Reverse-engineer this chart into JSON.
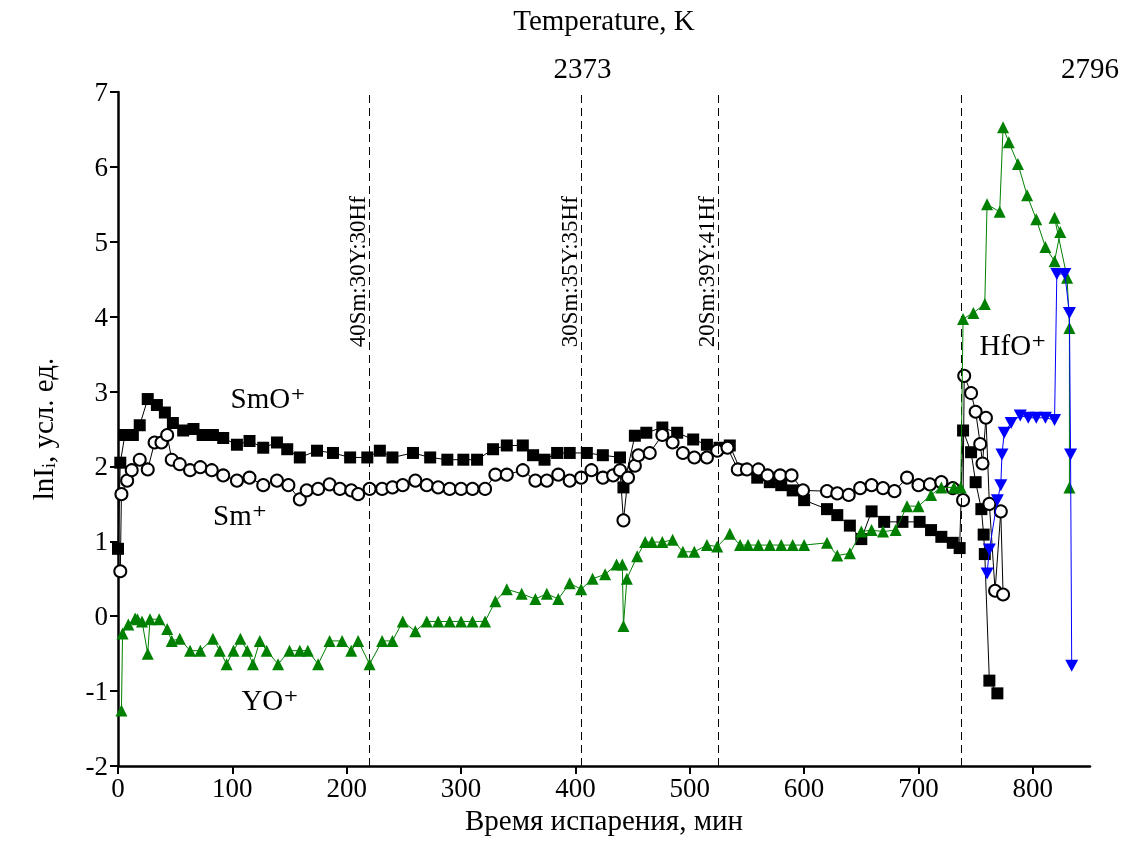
{
  "chart_data": {
    "type": "line",
    "xlabel": "Время испарения, мин",
    "ylabel": "lnI$_{i}$, усл. ед.",
    "x2label": "Temperature, K",
    "xlim": [
      0,
      850
    ],
    "xticks": [
      0,
      100,
      200,
      300,
      400,
      500,
      600,
      700,
      800
    ],
    "ylim": [
      -2,
      7
    ],
    "yticks": [
      -2,
      -1,
      0,
      1,
      2,
      3,
      4,
      5,
      6,
      7
    ],
    "x2lim": [
      1986,
      2796
    ],
    "x2ticks": [
      2373,
      2796
    ],
    "grid": false,
    "legend": false,
    "line_style": "solid",
    "series": [
      {
        "name": "SmO⁺",
        "marker": "square",
        "color": "#000000",
        "x": [
          0,
          2,
          6,
          13,
          19,
          26,
          34,
          41,
          48,
          57,
          66,
          74,
          83,
          92,
          104,
          115,
          127,
          139,
          148,
          159,
          174,
          188,
          203,
          218,
          229,
          240,
          258,
          273,
          288,
          302,
          314,
          328,
          340,
          354,
          363,
          373,
          384,
          395,
          410,
          424,
          439,
          442,
          452,
          462,
          476,
          489,
          503,
          515,
          526,
          535,
          544,
          559,
          570,
          580,
          590,
          600,
          620,
          629,
          640,
          650,
          659,
          670,
          686,
          701,
          711,
          720,
          730,
          736,
          739,
          746,
          750,
          755,
          757,
          758,
          762,
          769
        ],
        "values": [
          0.9,
          2.05,
          2.42,
          2.42,
          2.55,
          2.9,
          2.82,
          2.72,
          2.58,
          2.48,
          2.5,
          2.42,
          2.42,
          2.38,
          2.29,
          2.34,
          2.25,
          2.32,
          2.23,
          2.12,
          2.21,
          2.18,
          2.12,
          2.12,
          2.21,
          2.12,
          2.18,
          2.12,
          2.09,
          2.09,
          2.09,
          2.23,
          2.28,
          2.28,
          2.15,
          2.09,
          2.18,
          2.18,
          2.18,
          2.15,
          2.12,
          1.72,
          2.41,
          2.45,
          2.52,
          2.45,
          2.36,
          2.29,
          2.25,
          2.28,
          1.96,
          1.85,
          1.79,
          1.75,
          1.68,
          1.55,
          1.43,
          1.35,
          1.21,
          1.03,
          1.4,
          1.26,
          1.26,
          1.26,
          1.15,
          1.06,
          0.98,
          0.91,
          2.48,
          2.19,
          1.79,
          1.43,
          1.09,
          0.83,
          -0.86,
          -1.03
        ]
      },
      {
        "name": "Sm⁺",
        "marker": "circle",
        "color": "#000000",
        "x": [
          2,
          3,
          8,
          12,
          19,
          26,
          32,
          38,
          43,
          47,
          54,
          63,
          72,
          82,
          92,
          104,
          115,
          127,
          139,
          149,
          159,
          165,
          175,
          185,
          194,
          204,
          210,
          220,
          231,
          240,
          249,
          260,
          270,
          280,
          290,
          300,
          310,
          321,
          330,
          340,
          354,
          365,
          375,
          385,
          395,
          405,
          414,
          424,
          433,
          439,
          442,
          446,
          452,
          455,
          465,
          476,
          485,
          494,
          504,
          515,
          524,
          533,
          542,
          550,
          560,
          568,
          579,
          589,
          599,
          620,
          629,
          639,
          649,
          659,
          669,
          679,
          690,
          700,
          710,
          720,
          730,
          739,
          740,
          746,
          750,
          754,
          756,
          759,
          762,
          767,
          772,
          774
        ],
        "values": [
          0.6,
          1.63,
          1.81,
          1.95,
          2.09,
          1.96,
          2.32,
          2.32,
          2.42,
          2.09,
          2.03,
          1.95,
          1.99,
          1.95,
          1.88,
          1.81,
          1.85,
          1.75,
          1.81,
          1.75,
          1.56,
          1.68,
          1.7,
          1.76,
          1.7,
          1.68,
          1.63,
          1.7,
          1.7,
          1.72,
          1.75,
          1.81,
          1.75,
          1.72,
          1.7,
          1.7,
          1.7,
          1.7,
          1.89,
          1.89,
          1.95,
          1.81,
          1.81,
          1.89,
          1.81,
          1.85,
          1.95,
          1.85,
          1.88,
          1.95,
          1.28,
          1.85,
          2.01,
          2.15,
          2.18,
          2.42,
          2.32,
          2.18,
          2.12,
          2.12,
          2.21,
          2.25,
          1.96,
          1.96,
          1.96,
          1.88,
          1.88,
          1.88,
          1.68,
          1.67,
          1.64,
          1.62,
          1.71,
          1.75,
          1.71,
          1.67,
          1.85,
          1.75,
          1.76,
          1.79,
          1.71,
          1.55,
          3.21,
          2.98,
          2.73,
          2.3,
          2.04,
          2.65,
          1.5,
          0.34,
          1.4,
          0.29
        ]
      },
      {
        "name": "YO⁺",
        "marker": "triangle",
        "color": "#008000",
        "x": [
          3,
          4,
          9,
          15,
          17,
          21,
          26,
          28,
          36,
          43,
          47,
          54,
          63,
          72,
          83,
          89,
          95,
          101,
          107,
          113,
          118,
          124,
          130,
          140,
          150,
          159,
          166,
          175,
          185,
          196,
          204,
          210,
          220,
          231,
          240,
          249,
          260,
          270,
          280,
          290,
          300,
          310,
          321,
          330,
          340,
          353,
          365,
          375,
          385,
          395,
          405,
          415,
          426,
          436,
          441,
          442,
          445,
          454,
          461,
          467,
          476,
          485,
          494,
          504,
          515,
          524,
          535,
          544,
          551,
          560,
          570,
          580,
          590,
          600,
          620,
          629,
          640,
          650,
          659,
          669,
          680,
          690,
          700,
          711,
          720,
          731,
          737,
          739,
          748,
          758,
          760,
          771,
          774,
          779,
          787,
          795,
          803,
          811,
          819,
          824,
          819,
          830,
          832,
          832
        ],
        "values": [
          -1.26,
          -0.23,
          -0.11,
          -0.03,
          -0.04,
          -0.07,
          -0.5,
          -0.04,
          -0.04,
          -0.17,
          -0.33,
          -0.3,
          -0.46,
          -0.46,
          -0.3,
          -0.46,
          -0.64,
          -0.46,
          -0.3,
          -0.46,
          -0.64,
          -0.33,
          -0.46,
          -0.64,
          -0.46,
          -0.46,
          -0.46,
          -0.64,
          -0.33,
          -0.33,
          -0.46,
          -0.33,
          -0.64,
          -0.33,
          -0.33,
          -0.07,
          -0.2,
          -0.07,
          -0.07,
          -0.07,
          -0.07,
          -0.07,
          -0.07,
          0.2,
          0.36,
          0.3,
          0.23,
          0.3,
          0.23,
          0.44,
          0.36,
          0.5,
          0.56,
          0.69,
          0.69,
          -0.13,
          0.5,
          0.8,
          0.99,
          0.99,
          0.99,
          1.02,
          0.86,
          0.86,
          0.95,
          0.93,
          1.1,
          0.95,
          0.95,
          0.95,
          0.95,
          0.95,
          0.95,
          0.95,
          0.98,
          0.81,
          0.84,
          1.13,
          1.15,
          1.13,
          1.15,
          1.47,
          1.47,
          1.62,
          1.72,
          1.72,
          1.72,
          3.97,
          4.05,
          4.17,
          5.5,
          5.4,
          6.53,
          6.33,
          6.04,
          5.62,
          5.3,
          4.93,
          4.74,
          5.13,
          5.32,
          4.52,
          3.85,
          1.72
        ]
      },
      {
        "name": "HfO⁺",
        "marker": "triangle-down",
        "color": "#0000ff",
        "x": [
          760,
          762,
          769,
          772,
          773,
          775,
          781,
          789,
          796,
          803,
          811,
          819,
          821,
          828,
          832,
          833,
          834
        ],
        "values": [
          0.57,
          0.89,
          1.55,
          1.75,
          2.16,
          2.45,
          2.58,
          2.68,
          2.65,
          2.65,
          2.65,
          2.62,
          4.57,
          4.57,
          4.05,
          2.16,
          -0.66
        ]
      }
    ],
    "ref_lines": [
      {
        "axis": "x",
        "value": 220,
        "line_style": "dashed",
        "color": "#000000"
      },
      {
        "axis": "x",
        "value": 405,
        "line_style": "dashed",
        "color": "#000000"
      },
      {
        "axis": "x",
        "value": 525,
        "line_style": "dashed",
        "color": "#000000"
      },
      {
        "axis": "x",
        "value": 737,
        "line_style": "dashed",
        "color": "#000000"
      }
    ],
    "annotations": [
      {
        "text": "40Sm:30Y:30Hf",
        "x": 220,
        "y": 4.6
      },
      {
        "text": "30Sm:35Y:35Hf",
        "x": 405,
        "y": 4.6
      },
      {
        "text": "20Sm:39Y:41Hf",
        "x": 525,
        "y": 4.6
      }
    ]
  }
}
